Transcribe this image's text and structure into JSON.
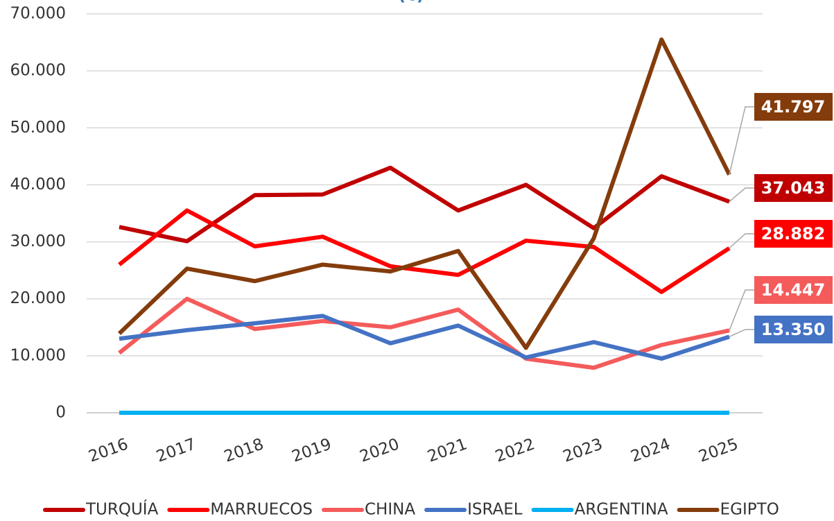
{
  "chart_data": {
    "type": "line",
    "title": "(€)",
    "categories": [
      "2016",
      "2017",
      "2018",
      "2019",
      "2020",
      "2021",
      "2022",
      "2023",
      "2024",
      "2025"
    ],
    "ylim": [
      0,
      70000
    ],
    "yticks": [
      0,
      {
        "value": 10000,
        "label": "10.000"
      },
      {
        "value": 20000,
        "label": "20.000"
      },
      {
        "value": 30000,
        "label": "30.000"
      },
      {
        "value": 40000,
        "label": "40.000"
      },
      {
        "value": 50000,
        "label": "50.000"
      },
      {
        "value": 60000,
        "label": "60.000"
      },
      {
        "value": 70000,
        "label": "70.000"
      }
    ],
    "grid": true,
    "legend": "bottom",
    "series": [
      {
        "name": "TURQUÍA",
        "color": "#c00000",
        "values": [
          32600,
          30100,
          38200,
          38300,
          43000,
          35500,
          40000,
          32400,
          41500,
          37043
        ],
        "value_labels": [
          null,
          null,
          null,
          null,
          null,
          null,
          null,
          null,
          null,
          "37.043"
        ]
      },
      {
        "name": "MARRUECOS",
        "color": "#ff0000",
        "values": [
          26000,
          35500,
          29200,
          30900,
          25700,
          24200,
          30200,
          29100,
          21200,
          28882
        ],
        "value_labels": [
          null,
          null,
          null,
          null,
          null,
          null,
          null,
          null,
          null,
          "28.882"
        ]
      },
      {
        "name": "CHINA",
        "color": "#f45b5b",
        "values": [
          10500,
          20000,
          14700,
          16100,
          15000,
          18100,
          9500,
          7900,
          11900,
          14447
        ],
        "value_labels": [
          null,
          null,
          null,
          null,
          null,
          null,
          null,
          null,
          null,
          "14.447"
        ]
      },
      {
        "name": "ISRAEL",
        "color": "#4472c4",
        "values": [
          13000,
          14500,
          15700,
          17000,
          12200,
          15300,
          9700,
          12400,
          9500,
          13350
        ],
        "value_labels": [
          null,
          null,
          null,
          null,
          null,
          null,
          null,
          null,
          null,
          "13.350"
        ]
      },
      {
        "name": "ARGENTINA",
        "color": "#00b0f0",
        "values": [
          0,
          0,
          0,
          0,
          0,
          0,
          0,
          0,
          0,
          0
        ]
      },
      {
        "name": "EGIPTO",
        "color": "#843c0c",
        "values": [
          13900,
          25300,
          23100,
          26000,
          24800,
          28400,
          11400,
          30600,
          65500,
          41797
        ],
        "value_labels": [
          null,
          null,
          null,
          null,
          null,
          null,
          null,
          null,
          null,
          "41.797"
        ]
      }
    ]
  }
}
